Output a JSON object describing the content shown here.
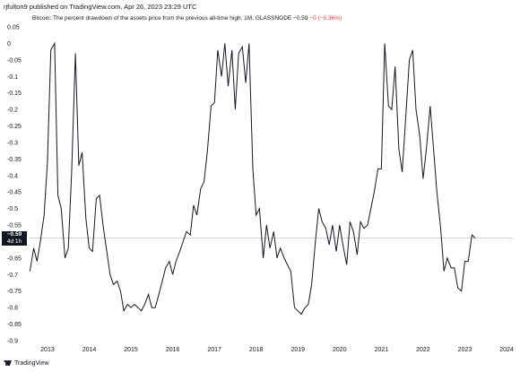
{
  "attribution": "rjfulton9 published on TradingView.com, Apr 26, 2023 23:29 UTC",
  "legend": {
    "text": "Bitcoin: The percent drawdown of the assets price from the previous all-time high, 1M, GLASSNODE",
    "value": "−0.59",
    "change": "−0 (−0.36%)"
  },
  "price_tag": {
    "value": "−0.59",
    "countdown": "4d 1h"
  },
  "footer": {
    "brand": "TradingView",
    "logo_icon": "tradingview-logo-icon"
  },
  "colors": {
    "line": "#131722",
    "background": "#ffffff",
    "tag": "#131722",
    "change": "#f23645"
  },
  "chart_data": {
    "type": "line",
    "title": "",
    "xlabel": "",
    "ylabel": "",
    "xlim": [
      2012.55,
      2024.15
    ],
    "ylim": [
      -0.9,
      0.05
    ],
    "y_ticks": [
      "0.05",
      "0",
      "-0.05",
      "-0.1",
      "-0.15",
      "-0.2",
      "-0.25",
      "-0.3",
      "-0.35",
      "-0.4",
      "-0.45",
      "-0.5",
      "-0.55",
      "-0.6",
      "-0.65",
      "-0.7",
      "-0.75",
      "-0.8",
      "-0.85",
      "-0.9"
    ],
    "x_ticks": [
      "2013",
      "2014",
      "2015",
      "2016",
      "2017",
      "2018",
      "2019",
      "2020",
      "2021",
      "2022",
      "2023",
      "2024"
    ],
    "grid": false,
    "current_value_line": -0.59,
    "series": [
      {
        "x": [
          2012.58,
          2012.67,
          2012.75,
          2012.83,
          2012.92,
          2013.0,
          2013.08,
          2013.17,
          2013.25,
          2013.33,
          2013.42,
          2013.5,
          2013.58,
          2013.67,
          2013.75,
          2013.83,
          2013.92,
          2014.0,
          2014.08,
          2014.17,
          2014.25,
          2014.33,
          2014.42,
          2014.5,
          2014.58,
          2014.67,
          2014.75,
          2014.83,
          2014.92,
          2015.0,
          2015.08,
          2015.17,
          2015.25,
          2015.33,
          2015.42,
          2015.5,
          2015.58,
          2015.67,
          2015.75,
          2015.83,
          2015.92,
          2016.0,
          2016.08,
          2016.17,
          2016.25,
          2016.33,
          2016.42,
          2016.5,
          2016.58,
          2016.67,
          2016.75,
          2016.83,
          2016.92,
          2017.0,
          2017.08,
          2017.17,
          2017.25,
          2017.33,
          2017.42,
          2017.5,
          2017.58,
          2017.67,
          2017.75,
          2017.83,
          2017.92,
          2018.0,
          2018.08,
          2018.17,
          2018.25,
          2018.33,
          2018.42,
          2018.5,
          2018.58,
          2018.67,
          2018.75,
          2018.83,
          2018.92,
          2019.0,
          2019.08,
          2019.17,
          2019.25,
          2019.33,
          2019.42,
          2019.5,
          2019.58,
          2019.67,
          2019.75,
          2019.83,
          2019.92,
          2020.0,
          2020.08,
          2020.17,
          2020.25,
          2020.33,
          2020.42,
          2020.5,
          2020.58,
          2020.67,
          2020.75,
          2020.83,
          2020.92,
          2021.0,
          2021.08,
          2021.17,
          2021.25,
          2021.33,
          2021.42,
          2021.5,
          2021.58,
          2021.67,
          2021.75,
          2021.83,
          2021.92,
          2022.0,
          2022.08,
          2022.17,
          2022.25,
          2022.33,
          2022.42,
          2022.5,
          2022.58,
          2022.67,
          2022.75,
          2022.83,
          2022.92,
          2023.0,
          2023.08,
          2023.17,
          2023.25
        ],
        "y": [
          -0.69,
          -0.62,
          -0.66,
          -0.6,
          -0.52,
          -0.36,
          -0.02,
          0.0,
          -0.46,
          -0.5,
          -0.65,
          -0.62,
          -0.39,
          -0.03,
          -0.37,
          -0.33,
          -0.53,
          -0.62,
          -0.63,
          -0.47,
          -0.46,
          -0.55,
          -0.63,
          -0.7,
          -0.73,
          -0.72,
          -0.75,
          -0.81,
          -0.79,
          -0.8,
          -0.79,
          -0.8,
          -0.81,
          -0.79,
          -0.76,
          -0.8,
          -0.8,
          -0.76,
          -0.72,
          -0.68,
          -0.66,
          -0.7,
          -0.66,
          -0.63,
          -0.6,
          -0.57,
          -0.58,
          -0.49,
          -0.52,
          -0.44,
          -0.42,
          -0.33,
          -0.19,
          -0.18,
          -0.02,
          -0.1,
          0.0,
          -0.13,
          -0.02,
          -0.2,
          -0.03,
          -0.01,
          -0.12,
          0.0,
          -0.38,
          -0.52,
          -0.5,
          -0.65,
          -0.55,
          -0.62,
          -0.57,
          -0.65,
          -0.62,
          -0.65,
          -0.67,
          -0.69,
          -0.8,
          -0.81,
          -0.82,
          -0.8,
          -0.79,
          -0.73,
          -0.6,
          -0.5,
          -0.54,
          -0.56,
          -0.61,
          -0.55,
          -0.63,
          -0.55,
          -0.61,
          -0.67,
          -0.54,
          -0.57,
          -0.64,
          -0.54,
          -0.56,
          -0.55,
          -0.5,
          -0.45,
          -0.38,
          -0.38,
          0.0,
          -0.19,
          -0.2,
          -0.07,
          -0.32,
          -0.39,
          -0.23,
          -0.05,
          -0.02,
          -0.2,
          -0.28,
          -0.41,
          -0.32,
          -0.19,
          -0.32,
          -0.45,
          -0.56,
          -0.69,
          -0.65,
          -0.68,
          -0.68,
          -0.74,
          -0.75,
          -0.66,
          -0.66,
          -0.58,
          -0.59
        ]
      }
    ]
  }
}
